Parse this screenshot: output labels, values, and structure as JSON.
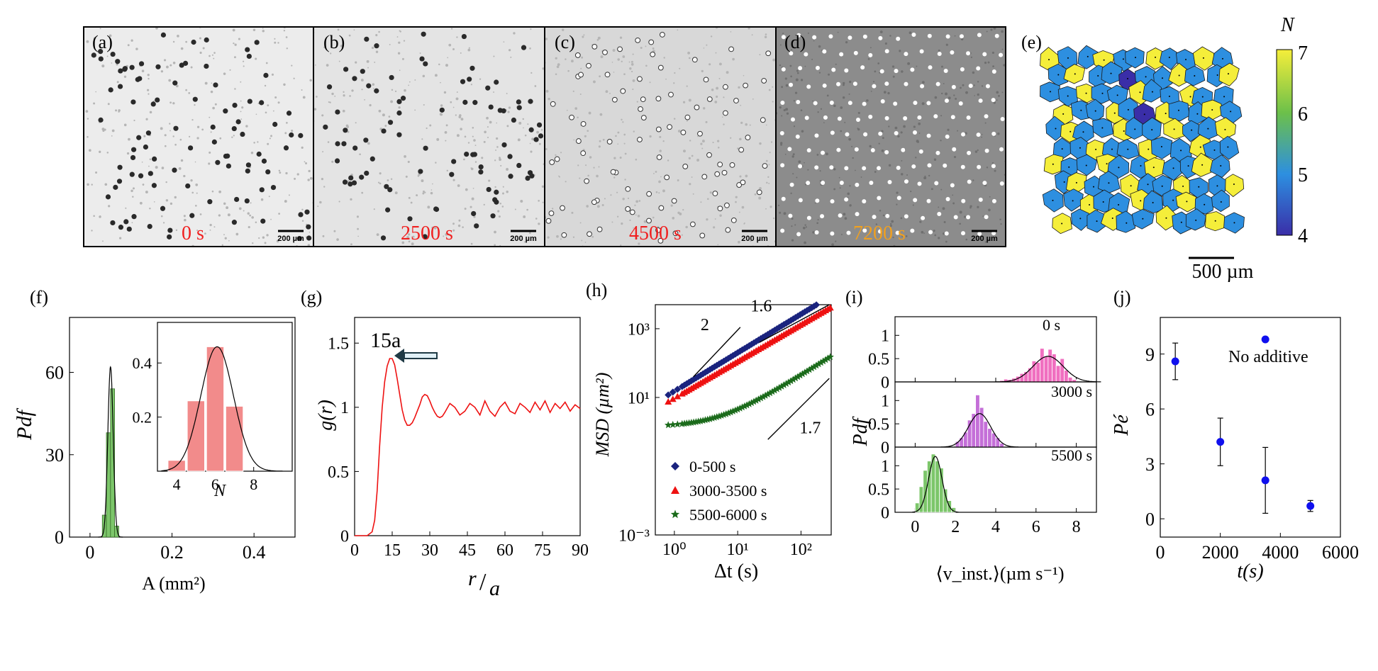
{
  "panels": {
    "a": {
      "label": "(a)",
      "time": "0 s",
      "scalebar": "200 µm",
      "bg": "#ececec",
      "particle": "dark"
    },
    "b": {
      "label": "(b)",
      "time": "2500 s",
      "scalebar": "200 µm",
      "bg": "#e4e4e4",
      "particle": "dark"
    },
    "c": {
      "label": "(c)",
      "time": "4500 s",
      "scalebar": "200 µm",
      "bg": "#d8d8d8",
      "particle": "ring"
    },
    "d": {
      "label": "(d)",
      "time": "7200 s",
      "scalebar": "200 µm",
      "bg": "#8c8c8c",
      "particle": "white"
    },
    "e": {
      "label": "(e)",
      "colorbar_title": "N",
      "colorbar_ticks": [
        "4",
        "5",
        "6",
        "7"
      ],
      "scalebar": "500 µm",
      "colors": {
        "4": "#3a2ea8",
        "5": "#2d8fe0",
        "6": "#6cc04a",
        "7": "#f5ee3a"
      }
    },
    "f": {
      "label": "(f)",
      "ylabel": "Pdf",
      "xlabel": "A  (mm²)",
      "inset_xlabel": "N"
    },
    "g": {
      "label": "(g)",
      "ylabel": "g(r)",
      "xlabel_num": "r",
      "xlabel_den": "a",
      "annotation": "15a"
    },
    "h": {
      "label": "(h)",
      "ylabel": "MSD (µm²)",
      "xlabel": "Δt (s)",
      "slope_labels": [
        "2",
        "1.6",
        "1.7"
      ]
    },
    "i": {
      "label": "(i)",
      "ylabel": "Pdf",
      "xlabel": "⟨v_inst.⟩(µm s⁻¹)",
      "times": [
        "0 s",
        "3000 s",
        "5500 s"
      ]
    },
    "j": {
      "label": "(j)",
      "ylabel": "Pé",
      "xlabel": "t(s)",
      "annotation": "No additive"
    }
  },
  "chart_data": [
    {
      "type": "bar",
      "panel": "f",
      "title": "",
      "xlabel": "A (mm²)",
      "ylabel": "Pdf",
      "xlim": [
        -0.05,
        0.5
      ],
      "ylim": [
        0,
        80
      ],
      "xticks": [
        0,
        0.2,
        0.4
      ],
      "yticks": [
        0,
        30,
        60
      ],
      "bins": [
        0.035,
        0.045,
        0.055,
        0.065
      ],
      "values": [
        8,
        38,
        54,
        4
      ],
      "gaussian": {
        "mu": 0.05,
        "sigma": 0.0065,
        "peak": 62
      }
    },
    {
      "type": "bar",
      "panel": "f-inset",
      "xlabel": "N",
      "xlim": [
        3,
        10
      ],
      "ylim": [
        0,
        0.55
      ],
      "xticks": [
        4,
        6,
        8
      ],
      "yticks": [
        0.2,
        0.4
      ],
      "categories": [
        4,
        5,
        6,
        7
      ],
      "values": [
        0.04,
        0.26,
        0.46,
        0.24
      ],
      "gaussian": {
        "mu": 6.1,
        "sigma": 0.85,
        "peak": 0.46
      }
    },
    {
      "type": "line",
      "panel": "g",
      "xlabel": "r/a",
      "ylabel": "g(r)",
      "xlim": [
        0,
        90
      ],
      "ylim": [
        0,
        1.7
      ],
      "xticks": [
        0,
        15,
        30,
        45,
        60,
        75,
        90
      ],
      "yticks": [
        0,
        0.5,
        1,
        1.5
      ],
      "x": [
        0,
        5,
        7,
        8,
        9,
        10,
        11,
        12,
        13,
        14,
        15,
        16,
        17,
        18,
        19,
        20,
        21,
        22,
        23,
        24,
        25,
        26,
        27,
        28,
        29,
        30,
        31,
        32,
        33,
        34,
        35,
        36,
        38,
        40,
        42,
        44,
        46,
        48,
        50,
        52,
        54,
        56,
        58,
        60,
        62,
        64,
        66,
        68,
        70,
        72,
        74,
        76,
        78,
        80,
        82,
        84,
        86,
        88,
        90
      ],
      "y": [
        0,
        0,
        0.03,
        0.12,
        0.35,
        0.7,
        1.0,
        1.2,
        1.32,
        1.38,
        1.38,
        1.33,
        1.22,
        1.1,
        0.98,
        0.9,
        0.86,
        0.86,
        0.88,
        0.92,
        0.97,
        1.02,
        1.08,
        1.1,
        1.09,
        1.05,
        1.0,
        0.96,
        0.93,
        0.92,
        0.93,
        0.96,
        1.03,
        1.0,
        0.94,
        0.97,
        1.03,
        1.0,
        0.94,
        1.05,
        0.97,
        0.93,
        1.0,
        1.04,
        0.97,
        0.95,
        1.03,
        1.0,
        0.96,
        1.04,
        0.98,
        1.05,
        0.96,
        1.03,
        0.99,
        1.04,
        0.97,
        1.02,
        0.99
      ]
    },
    {
      "type": "scatter",
      "panel": "h",
      "xlabel": "Δt (s)",
      "ylabel": "MSD (µm²)",
      "xscale": "log",
      "yscale": "log",
      "xlim": [
        0.5,
        300
      ],
      "ylim": [
        0.001,
        5000
      ],
      "xticks": [
        1,
        10,
        100
      ],
      "yticks": [
        0.001,
        10,
        1000
      ],
      "series": [
        {
          "name": "0-500 s",
          "marker": "diamond",
          "color": "#1a237e",
          "a": 8,
          "b": 1.12
        },
        {
          "name": "3000-3500 s",
          "marker": "triangle",
          "color": "#ee1111",
          "a": 5,
          "b": 1.07
        },
        {
          "name": "5500-6000 s",
          "marker": "star",
          "color": "#1b6b1b",
          "a": 1.4,
          "b": 0.1,
          "c": 1.15
        }
      ],
      "guides": [
        {
          "label": "2",
          "x": [
            2,
            12
          ],
          "slope": 2,
          "y0": 30
        },
        {
          "label": "1.6",
          "x": [
            25,
            280
          ],
          "slope": 1.6,
          "y0": 280
        },
        {
          "label": "1.7",
          "x": [
            25,
            280
          ],
          "slope": 1.7,
          "y0": 0.6
        }
      ]
    },
    {
      "type": "bar",
      "panel": "i",
      "xlabel": "⟨v_inst.⟩(µm s⁻¹)",
      "ylabel": "Pdf",
      "xlim": [
        -1,
        9
      ],
      "xticks": [
        0,
        2,
        4,
        6,
        8
      ],
      "series": [
        {
          "name": "0 s",
          "color": "#f06fc0",
          "ylim": [
            0,
            1.4
          ],
          "yticks": [
            0,
            0.5,
            1
          ],
          "bins": [
            4.3,
            4.5,
            4.7,
            4.9,
            5.1,
            5.3,
            5.5,
            5.7,
            5.9,
            6.1,
            6.3,
            6.5,
            6.7,
            6.9,
            7.1,
            7.3,
            7.5,
            7.7,
            7.9
          ],
          "values": [
            0.03,
            0.06,
            0.05,
            0.08,
            0.12,
            0.18,
            0.22,
            0.3,
            0.45,
            0.42,
            0.72,
            0.55,
            0.7,
            0.6,
            0.35,
            0.5,
            0.25,
            0.1,
            0.05
          ],
          "gaussian": {
            "mu": 6.6,
            "sigma": 0.75,
            "peak": 0.55
          }
        },
        {
          "name": "3000 s",
          "color": "#c46fd8",
          "ylim": [
            0,
            1.4
          ],
          "yticks": [
            0,
            0.5,
            1
          ],
          "bins": [
            2.1,
            2.3,
            2.5,
            2.7,
            2.9,
            3.1,
            3.3,
            3.5,
            3.7,
            3.9,
            4.1,
            4.3
          ],
          "values": [
            0.12,
            0.2,
            0.32,
            0.58,
            0.72,
            1.12,
            0.85,
            0.55,
            0.4,
            0.3,
            0.2,
            0.08
          ],
          "gaussian": {
            "mu": 3.2,
            "sigma": 0.55,
            "peak": 0.72
          }
        },
        {
          "name": "5500 s",
          "color": "#7cc66a",
          "ylim": [
            0,
            1.4
          ],
          "yticks": [
            0,
            0.5,
            1
          ],
          "bins": [
            0.1,
            0.3,
            0.5,
            0.7,
            0.9,
            1.1,
            1.3,
            1.5,
            1.7,
            1.9
          ],
          "values": [
            0.2,
            0.55,
            0.9,
            1.1,
            1.25,
            1.1,
            0.95,
            0.5,
            0.25,
            0.1
          ],
          "gaussian": {
            "mu": 1.0,
            "sigma": 0.33,
            "peak": 1.2
          }
        }
      ]
    },
    {
      "type": "scatter",
      "panel": "j",
      "xlabel": "t(s)",
      "ylabel": "Pé",
      "xlim": [
        0,
        6000
      ],
      "ylim": [
        -1,
        11
      ],
      "xticks": [
        0,
        2000,
        4000,
        6000
      ],
      "yticks": [
        0,
        3,
        6,
        9
      ],
      "x": [
        500,
        2000,
        3500,
        5000
      ],
      "y": [
        8.6,
        4.2,
        2.1,
        0.7
      ],
      "yerr": [
        1.0,
        1.3,
        1.8,
        0.3
      ],
      "extra": {
        "x": 3500,
        "y": 9.8,
        "label": "No additive"
      },
      "color": "#1010ee"
    }
  ]
}
